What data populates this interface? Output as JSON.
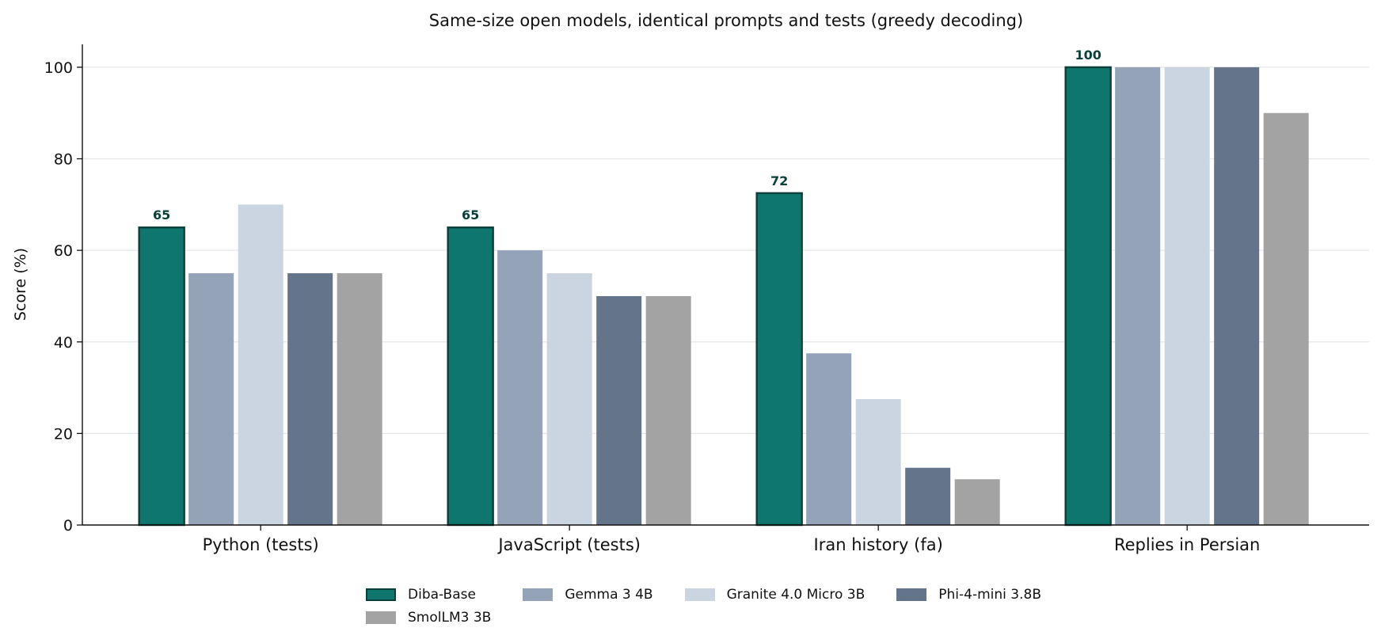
{
  "chart_data": {
    "type": "bar",
    "title": "Same-size open models, identical prompts and tests (greedy decoding)",
    "xlabel": "",
    "ylabel": "Score (%)",
    "ylim": [
      0,
      105
    ],
    "yticks": [
      0,
      20,
      40,
      60,
      80,
      100
    ],
    "grid": "horizontal",
    "legend_position": "bottom",
    "categories": [
      "Python (tests)",
      "JavaScript (tests)",
      "Iran history (fa)",
      "Replies in Persian"
    ],
    "series": [
      {
        "name": "Diba-Base",
        "color": "#0f766e",
        "edge": "#0b3f3a",
        "values": [
          65,
          65,
          72.5,
          100
        ],
        "labels": [
          "65",
          "65",
          "72",
          "100"
        ]
      },
      {
        "name": "Gemma 3 4B",
        "color": "#94a3b8",
        "values": [
          55,
          60,
          37.5,
          100
        ]
      },
      {
        "name": "Granite 4.0 Micro 3B",
        "color": "#cbd5e1",
        "values": [
          70,
          55,
          27.5,
          100
        ]
      },
      {
        "name": "Phi-4-mini 3.8B",
        "color": "#64748b",
        "values": [
          55,
          50,
          12.5,
          100
        ]
      },
      {
        "name": "SmolLM3 3B",
        "color": "#a3a3a3",
        "values": [
          55,
          50,
          10,
          90
        ]
      }
    ],
    "label_color": "#0b3f3a"
  }
}
